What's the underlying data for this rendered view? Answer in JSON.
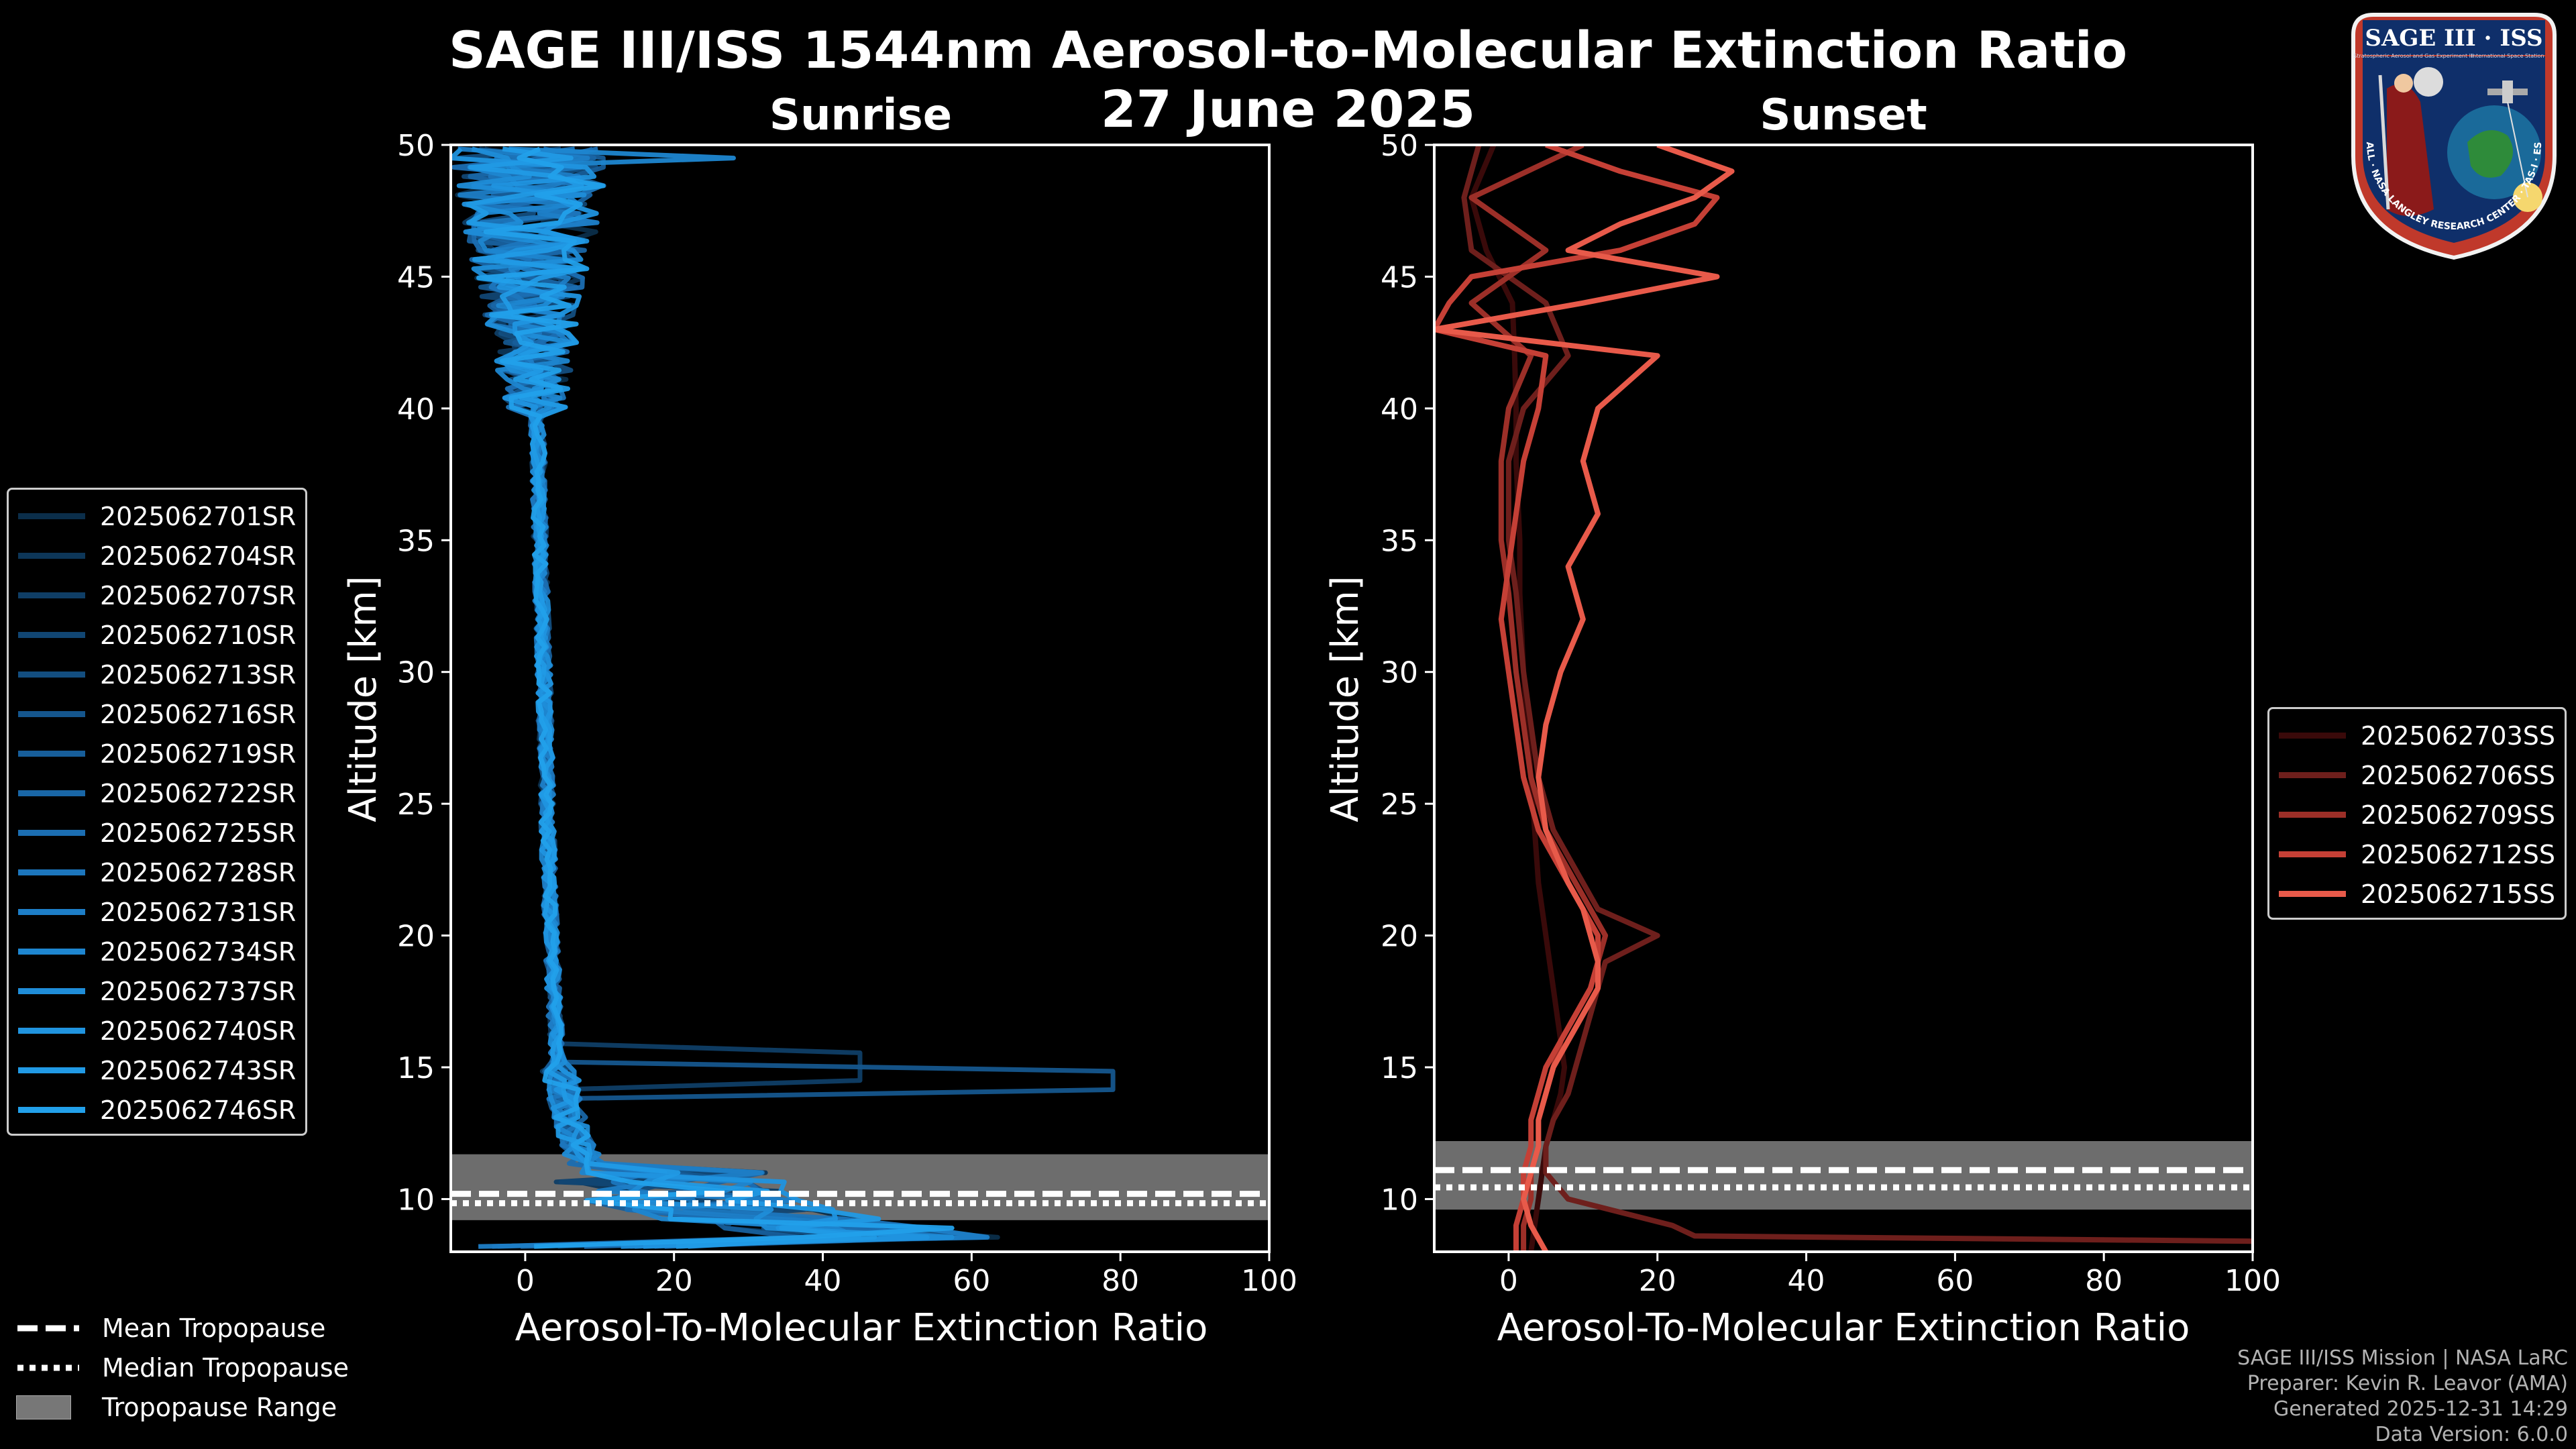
{
  "title_line1": "SAGE III/ISS 1544nm Aerosol-to-Molecular Extinction Ratio",
  "title_line2": "27 June 2025",
  "logo": {
    "name": "SAGE III · ISS",
    "subtitle": "Stratospheric Aerosol and Gas Experiment III",
    "station": "International Space Station",
    "ring_text": "BALL · NASA LANGLEY RESEARCH CENTER · TAS-I · ESA"
  },
  "sunrise": {
    "title": "Sunrise",
    "xlabel": "Aerosol-To-Molecular Extinction Ratio",
    "ylabel": "Altitude [km]",
    "legend": [
      "2025062701SR",
      "2025062704SR",
      "2025062707SR",
      "2025062710SR",
      "2025062713SR",
      "2025062716SR",
      "2025062719SR",
      "2025062722SR",
      "2025062725SR",
      "2025062728SR",
      "2025062731SR",
      "2025062734SR",
      "2025062737SR",
      "2025062740SR",
      "2025062743SR",
      "2025062746SR"
    ],
    "legend_colors": [
      "#0b2e4a",
      "#0d3658",
      "#0f3e66",
      "#114673",
      "#134e80",
      "#15568d",
      "#175e9a",
      "#1966a6",
      "#1b6eb2",
      "#1c76bd",
      "#1d7ec7",
      "#1e86d0",
      "#1f8dd8",
      "#2094df",
      "#219ae5",
      "#22a0ea"
    ]
  },
  "sunset": {
    "title": "Sunset",
    "xlabel": "Aerosol-To-Molecular Extinction Ratio",
    "ylabel": "Altitude [km]",
    "legend": [
      "2025062703SS",
      "2025062706SS",
      "2025062709SS",
      "2025062712SS",
      "2025062715SS"
    ],
    "legend_colors": [
      "#3a0a0a",
      "#6e1f1c",
      "#9c2f28",
      "#c54036",
      "#e85a4a"
    ]
  },
  "tropopause_legend": {
    "mean": "Mean Tropopause",
    "median": "Median Tropopause",
    "range": "Tropopause Range"
  },
  "credits": {
    "line1": "SAGE III/ISS Mission | NASA LaRC",
    "line2": "Preparer: Kevin R. Leavor (AMA)",
    "line3": "Generated 2025-12-31 14:29",
    "line4": "Data Version: 6.0.0"
  },
  "chart_data": [
    {
      "type": "line",
      "panel": "Sunrise",
      "xlim": [
        -10,
        100
      ],
      "ylim": [
        8,
        50
      ],
      "xticks": [
        0,
        20,
        40,
        60,
        80,
        100
      ],
      "yticks": [
        10,
        15,
        20,
        25,
        30,
        35,
        40,
        45,
        50
      ],
      "tropopause": {
        "range": [
          9.2,
          11.7
        ],
        "mean": 10.2,
        "median": 10.2
      },
      "typical_profile": {
        "alt": [
          8.5,
          9,
          9.5,
          10,
          10.5,
          11,
          11.5,
          12,
          12.5,
          13,
          13.5,
          14,
          14.5,
          15,
          16,
          17,
          18,
          20,
          22,
          25,
          28,
          30,
          33,
          35,
          38,
          40,
          42,
          44,
          46,
          48,
          50
        ],
        "ratio": [
          40,
          30,
          20,
          14,
          11,
          9,
          8,
          7,
          6.5,
          6,
          5.5,
          5,
          5,
          4.5,
          4.2,
          4,
          3.8,
          3.5,
          3.2,
          3,
          2.7,
          2.5,
          2.2,
          2,
          1.8,
          1.5,
          1.2,
          1,
          0.8,
          0.6,
          0.5
        ]
      },
      "features": {
        "spike_14_5km": 79,
        "spike_49_5km": 28
      }
    },
    {
      "type": "line",
      "panel": "Sunset",
      "xlim": [
        -10,
        100
      ],
      "ylim": [
        8,
        50
      ],
      "xticks": [
        0,
        20,
        40,
        60,
        80,
        100
      ],
      "yticks": [
        10,
        15,
        20,
        25,
        30,
        35,
        40,
        45,
        50
      ],
      "tropopause": {
        "range": [
          9.6,
          12.2
        ],
        "mean": 11.1,
        "median": 10.8
      },
      "series": [
        {
          "name": "2025062703SS",
          "alt": [
            8,
            9,
            10,
            11,
            12,
            13,
            14,
            15,
            16,
            17,
            18,
            19,
            20,
            22,
            24,
            26,
            28,
            30,
            33,
            35,
            38,
            40,
            42,
            44,
            46,
            48,
            50
          ],
          "ratio": [
            3,
            3.5,
            4,
            4.5,
            5,
            6,
            7,
            7.5,
            7,
            6.5,
            6,
            5.5,
            5,
            4,
            3.5,
            3,
            2.5,
            2,
            1.5,
            1.5,
            1,
            1,
            0.8,
            0.5,
            -3,
            -5,
            -2
          ]
        },
        {
          "name": "2025062706SS",
          "alt": [
            8.4,
            8.6,
            9,
            10,
            11,
            12,
            13,
            14,
            15,
            16,
            17,
            18,
            19,
            20,
            21,
            22,
            24,
            26,
            28,
            30,
            33,
            35,
            38,
            40,
            42,
            44,
            46,
            48,
            50
          ],
          "ratio": [
            100,
            25,
            22,
            8,
            5,
            5,
            6,
            8,
            9,
            10,
            11,
            12,
            13,
            20,
            12,
            10,
            6,
            4,
            3,
            2,
            1,
            0,
            0,
            2,
            8,
            5,
            -5,
            -6,
            -4
          ]
        },
        {
          "name": "2025062709SS",
          "alt": [
            8,
            9,
            10,
            11,
            12,
            13,
            14,
            15,
            16,
            17,
            18,
            19,
            20,
            21,
            22,
            24,
            26,
            28,
            30,
            33,
            35,
            38,
            40,
            42,
            44,
            46,
            48,
            50
          ],
          "ratio": [
            2,
            2,
            3,
            3,
            4,
            4,
            5,
            6,
            7,
            9,
            11,
            12,
            13,
            11,
            9,
            5,
            3,
            2,
            1,
            0,
            -1,
            -1,
            0,
            3,
            -5,
            5,
            -5,
            10
          ]
        },
        {
          "name": "2025062712SS",
          "alt": [
            8,
            9,
            10,
            11,
            12,
            13,
            14,
            15,
            16,
            17,
            18,
            19,
            20,
            21,
            22,
            24,
            26,
            28,
            30,
            32,
            34,
            36,
            38,
            40,
            42,
            43,
            44,
            45,
            46,
            47,
            48,
            49,
            50
          ],
          "ratio": [
            1,
            1,
            2,
            2,
            3,
            3,
            4,
            5,
            7,
            9,
            11,
            12,
            12,
            10,
            8,
            4,
            2,
            1,
            0,
            -1,
            0,
            1,
            2,
            4,
            5,
            -10,
            -8,
            -5,
            15,
            25,
            28,
            15,
            5
          ]
        },
        {
          "name": "2025062715SS",
          "alt": [
            8,
            9,
            10,
            11,
            12,
            13,
            14,
            15,
            16,
            17,
            18,
            19,
            20,
            21,
            22,
            24,
            26,
            28,
            30,
            32,
            34,
            36,
            38,
            40,
            42,
            43,
            44,
            45,
            46,
            47,
            48,
            49,
            50
          ],
          "ratio": [
            5,
            3,
            2,
            3,
            4,
            4,
            5,
            6,
            8,
            10,
            12,
            12,
            11,
            10,
            8,
            5,
            4,
            5,
            7,
            10,
            8,
            12,
            10,
            12,
            20,
            -10,
            10,
            28,
            8,
            15,
            25,
            30,
            20
          ]
        }
      ]
    }
  ]
}
